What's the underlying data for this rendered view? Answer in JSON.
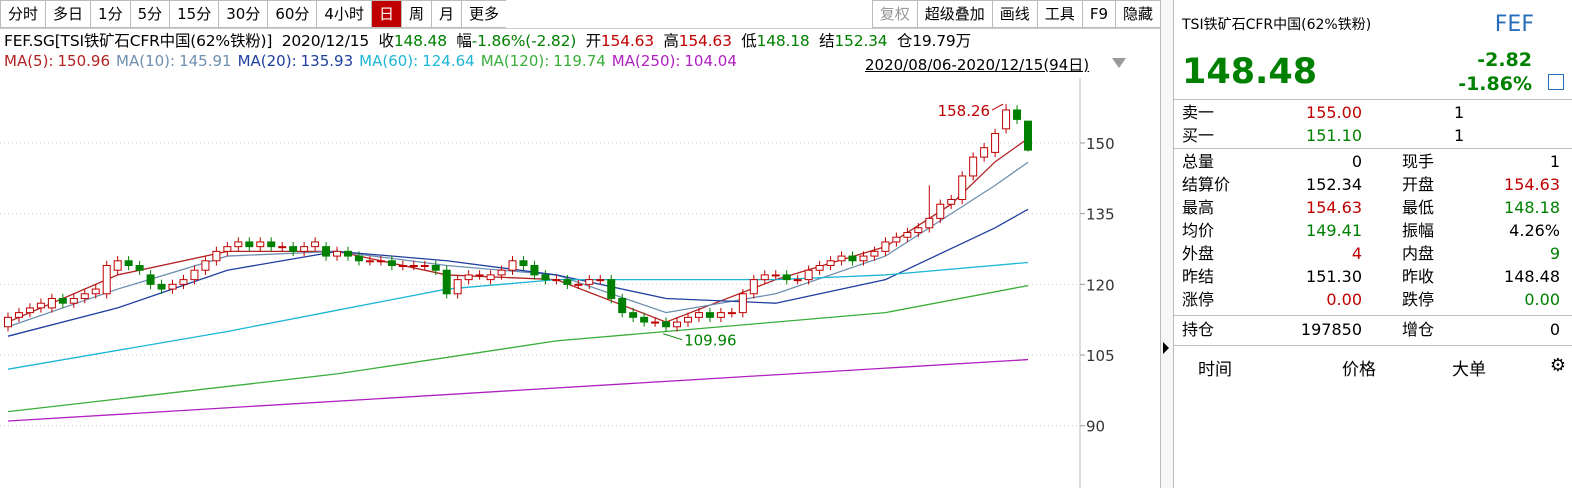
{
  "toolbar": {
    "tabs": [
      "分时",
      "多日",
      "1分",
      "5分",
      "15分",
      "30分",
      "60分",
      "4小时",
      "日",
      "周",
      "月",
      "更多"
    ],
    "selected": 8,
    "right_buttons": [
      "复权",
      "超级叠加",
      "画线",
      "工具",
      "F9",
      "隐藏"
    ]
  },
  "info": {
    "symbol": "FEF.SG[TSI铁矿石CFR中国(62%铁粉)]",
    "date": "2020/12/15",
    "items": [
      [
        "收",
        "148.48",
        "g"
      ],
      [
        "幅",
        "-1.86%(-2.82)",
        "g"
      ],
      [
        "开",
        "154.63",
        "r"
      ],
      [
        "高",
        "154.63",
        "r"
      ],
      [
        "低",
        "148.18",
        "g"
      ],
      [
        "结",
        "152.34",
        "g"
      ],
      [
        "仓",
        "19.79万",
        "k"
      ]
    ]
  },
  "date_range": "2020/08/06-2020/12/15(94日)",
  "chart_data": {
    "type": "candlestick",
    "ylim": [
      77,
      162.3
    ],
    "yticks": [
      90,
      105,
      120,
      135,
      150
    ],
    "grid": true,
    "up_color": "#c00000",
    "down_color": "#008000",
    "candles": {
      "open": [
        111,
        113,
        114,
        115,
        115,
        117,
        116,
        117,
        118,
        118,
        123,
        125,
        124,
        122,
        120,
        119,
        120,
        121,
        123,
        125,
        127,
        128,
        129,
        128,
        129,
        128,
        128,
        127,
        128,
        128,
        126,
        127,
        126,
        125,
        125,
        125,
        124,
        124,
        124,
        124,
        123,
        118,
        121,
        122,
        121,
        122,
        123,
        125,
        124,
        122,
        121,
        121,
        120,
        120,
        121,
        121,
        117,
        114,
        113,
        112,
        112,
        111,
        112,
        113,
        114,
        113,
        114,
        114,
        118,
        121,
        122,
        122,
        121,
        121,
        123,
        124,
        125,
        126,
        125,
        126,
        127,
        129,
        130,
        131,
        132,
        134,
        137,
        138,
        143,
        147,
        148,
        153,
        157,
        154.63
      ],
      "high": [
        114,
        115,
        116,
        117,
        118,
        118,
        118,
        119,
        120,
        125,
        126,
        126,
        125,
        123,
        121,
        121,
        122,
        124,
        126,
        128,
        129,
        130,
        130,
        130,
        130,
        129,
        129,
        129,
        130,
        129,
        128,
        128,
        127,
        126,
        126,
        126,
        125,
        125,
        125,
        125,
        124,
        122,
        123,
        123,
        123,
        124,
        126,
        126,
        125,
        123,
        122,
        122,
        121,
        122,
        122,
        122,
        118,
        115,
        114,
        113,
        113,
        113,
        114,
        115,
        115,
        115,
        115,
        119,
        122,
        123,
        123,
        123,
        122,
        124,
        125,
        126,
        127,
        127,
        127,
        128,
        130,
        131,
        132,
        133,
        141,
        138,
        139,
        144,
        148,
        150,
        153,
        158.26,
        158,
        154.63
      ],
      "low": [
        110,
        112,
        113,
        114,
        114,
        115,
        115,
        116,
        117,
        117,
        122,
        123,
        122,
        119,
        118,
        118,
        119,
        120,
        122,
        124,
        126,
        127,
        127,
        127,
        127,
        127,
        126,
        126,
        127,
        125,
        125,
        125,
        124,
        124,
        124,
        123,
        123,
        123,
        123,
        122,
        117,
        117,
        120,
        121,
        120,
        121,
        122,
        123,
        121,
        120,
        120,
        119,
        119,
        119,
        120,
        116,
        113,
        112,
        111,
        111,
        109.96,
        110,
        111,
        112,
        112,
        112,
        113,
        113,
        117,
        120,
        121,
        120,
        120,
        120,
        122,
        123,
        124,
        124,
        124,
        125,
        126,
        128,
        129,
        130,
        131,
        133,
        136,
        137,
        142,
        146,
        147,
        152,
        154,
        148.18
      ],
      "close": [
        113,
        114,
        115,
        116,
        117,
        116,
        117,
        118,
        119,
        124,
        125,
        124,
        123,
        120,
        119,
        120,
        121,
        123,
        125,
        127,
        128,
        129,
        128,
        129,
        128,
        128,
        127,
        128,
        129,
        126,
        127,
        126,
        125,
        125,
        125,
        124,
        124,
        124,
        124,
        123,
        118,
        121,
        122,
        122,
        122,
        123,
        125,
        124,
        122,
        121,
        121,
        120,
        120,
        121,
        121,
        117,
        114,
        113,
        112,
        112,
        111,
        112,
        113,
        114,
        113,
        114,
        114,
        118,
        121,
        122,
        122,
        121,
        121,
        123,
        124,
        125,
        126,
        125,
        126,
        127,
        129,
        130,
        131,
        132,
        134,
        137,
        138,
        143,
        147,
        149,
        152,
        157,
        155,
        148.48
      ]
    },
    "annotations": [
      {
        "index": 91,
        "field": "high"
      },
      {
        "index": 60,
        "field": "low"
      }
    ],
    "series": [
      {
        "name": "MA(5):",
        "color": "#b22222",
        "x": [
          0,
          10,
          20,
          30,
          40,
          50,
          60,
          70,
          80,
          86,
          90,
          93
        ],
        "values": [
          112,
          122,
          127,
          127,
          122,
          121,
          112,
          121,
          128,
          137,
          146,
          150.96
        ]
      },
      {
        "name": "MA(10):",
        "color": "#6f8fb0",
        "x": [
          0,
          10,
          20,
          30,
          40,
          50,
          60,
          70,
          80,
          90,
          93
        ],
        "values": [
          111,
          119,
          126,
          127,
          124,
          122,
          114,
          118,
          126,
          141,
          145.91
        ]
      },
      {
        "name": "MA(20):",
        "color": "#1f3f9f",
        "x": [
          0,
          10,
          20,
          30,
          40,
          50,
          60,
          70,
          80,
          90,
          93
        ],
        "values": [
          109,
          115,
          123,
          127,
          125,
          122,
          117,
          116,
          121,
          132,
          135.93
        ]
      },
      {
        "name": "MA(60):",
        "color": "#1cb6d6",
        "x": [
          0,
          20,
          40,
          50,
          60,
          70,
          80,
          93
        ],
        "values": [
          102,
          110,
          119,
          121,
          121,
          121,
          122,
          124.64
        ]
      },
      {
        "name": "MA(120):",
        "color": "#3aae3a",
        "x": [
          0,
          30,
          50,
          60,
          80,
          93
        ],
        "values": [
          93,
          101,
          108,
          110,
          114,
          119.74
        ]
      },
      {
        "name": "MA(250):",
        "color": "#b01fc0",
        "x": [
          0,
          93
        ],
        "values": [
          91,
          104.04
        ]
      }
    ]
  },
  "quote": {
    "title": "TSI铁矿石CFR中国(62%铁粉)",
    "code": "FEF",
    "price": "148.48",
    "change": "-2.82",
    "pct": "-1.86%",
    "book": [
      [
        "卖一",
        "155.00",
        "1"
      ],
      [
        "买一",
        "151.10",
        "1"
      ]
    ],
    "stats": [
      [
        "总量",
        "0",
        "现手",
        "1"
      ],
      [
        "结算价",
        "152.34",
        "开盘",
        "154.63"
      ],
      [
        "最高",
        "154.63",
        "最低",
        "148.18"
      ],
      [
        "均价",
        "149.41",
        "振幅",
        "4.26%"
      ],
      [
        "外盘",
        "4",
        "内盘",
        "9"
      ],
      [
        "昨结",
        "151.30",
        "昨收",
        "148.48"
      ],
      [
        "涨停",
        "0.00",
        "跌停",
        "0.00"
      ]
    ],
    "position": [
      "持仓",
      "197850",
      "增仓",
      "0"
    ],
    "trades_header": [
      "时间",
      "价格",
      "大单"
    ]
  }
}
